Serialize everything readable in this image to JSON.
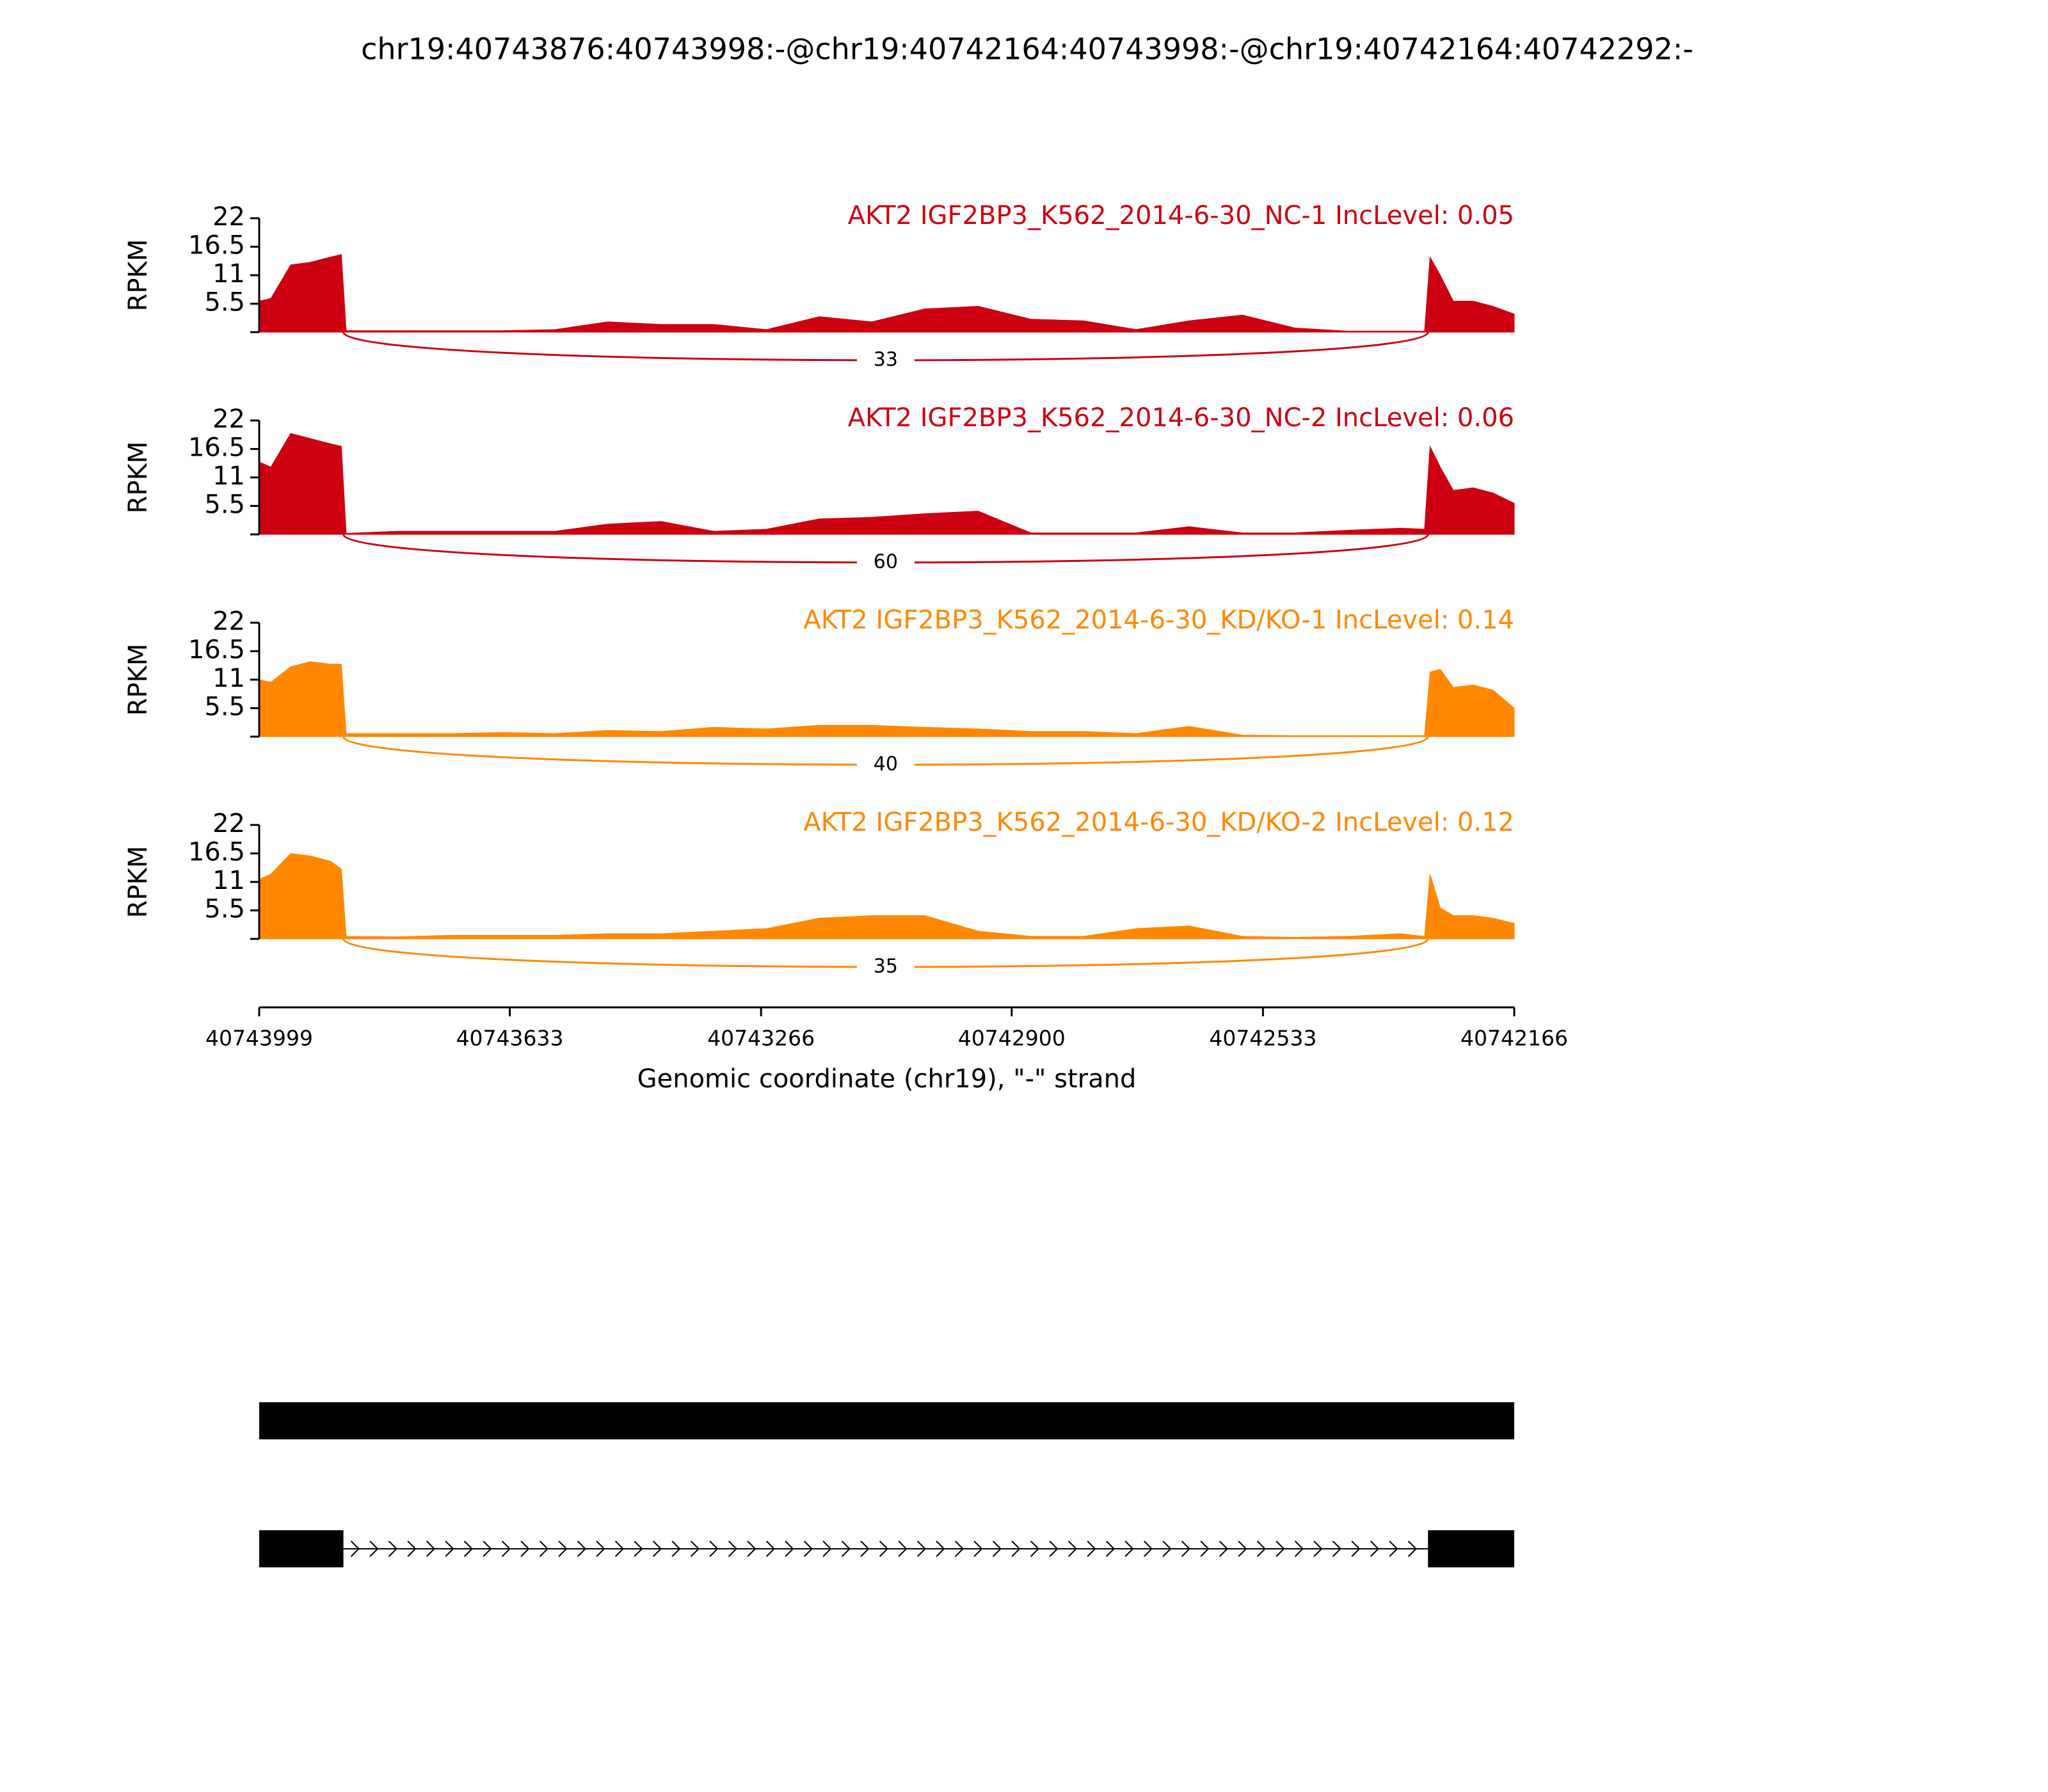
{
  "title": "chr19:40743876:40743998:-@chr19:40742164:40743998:-@chr19:40742164:40742292:-",
  "chart_data": [
    {
      "type": "area",
      "title": "AKT2 IGF2BP3_K562_2014-6-30_NC-1 IncLevel: 0.05",
      "color": "#cc0011",
      "ylabel": "RPKM",
      "ylim": [
        0,
        22
      ],
      "yticks": [
        5.5,
        11,
        16.5,
        22
      ],
      "xlim": [
        40743999,
        40742166
      ],
      "x": [
        40743999,
        40743982,
        40743953,
        40743924,
        40743895,
        40743879,
        40743872,
        40743798,
        40743721,
        40743644,
        40743567,
        40743490,
        40743412,
        40743335,
        40743258,
        40743181,
        40743104,
        40743027,
        40742949,
        40742872,
        40742795,
        40742718,
        40742641,
        40742563,
        40742486,
        40742409,
        40742332,
        40742297,
        40742289,
        40742274,
        40742255,
        40742226,
        40742197,
        40742166
      ],
      "values": [
        6,
        6.5,
        13,
        13.5,
        14.5,
        15,
        0.3,
        0.3,
        0.3,
        0.3,
        0.5,
        2,
        1.5,
        1.5,
        0.5,
        3,
        2,
        4.5,
        5,
        2.5,
        2.2,
        0.5,
        2.2,
        3.3,
        0.8,
        0.2,
        0.2,
        0.2,
        14.5,
        11,
        6,
        6,
        5,
        3.5
      ],
      "junctions": [
        {
          "start": 40743876,
          "end": 40742292,
          "count": 33
        }
      ]
    },
    {
      "type": "area",
      "title": "AKT2 IGF2BP3_K562_2014-6-30_NC-2 IncLevel: 0.06",
      "color": "#cc0011",
      "ylabel": "RPKM",
      "ylim": [
        0,
        22
      ],
      "yticks": [
        5.5,
        11,
        16.5,
        22
      ],
      "xlim": [
        40743999,
        40742166
      ],
      "x": [
        40743999,
        40743982,
        40743953,
        40743924,
        40743895,
        40743879,
        40743872,
        40743798,
        40743721,
        40743644,
        40743567,
        40743490,
        40743412,
        40743335,
        40743258,
        40743181,
        40743104,
        40743027,
        40742949,
        40742872,
        40742795,
        40742718,
        40742641,
        40742563,
        40742486,
        40742409,
        40742332,
        40742297,
        40742289,
        40742274,
        40742255,
        40742226,
        40742197,
        40742166
      ],
      "values": [
        14,
        13,
        19.5,
        18.5,
        17.5,
        17,
        0.2,
        0.6,
        0.6,
        0.6,
        0.6,
        2,
        2.5,
        0.6,
        1,
        3,
        3.3,
        4,
        4.5,
        0.3,
        0.3,
        0.3,
        1.5,
        0.3,
        0.3,
        0.8,
        1.2,
        1,
        17,
        13,
        8.5,
        9,
        8,
        6
      ],
      "junctions": [
        {
          "start": 40743876,
          "end": 40742292,
          "count": 60
        }
      ]
    },
    {
      "type": "area",
      "title": "AKT2 IGF2BP3_K562_2014-6-30_KD/KO-1 IncLevel: 0.14",
      "color": "#ff8800",
      "ylabel": "RPKM",
      "ylim": [
        0,
        22
      ],
      "yticks": [
        5.5,
        11,
        16.5,
        22
      ],
      "xlim": [
        40743999,
        40742166
      ],
      "x": [
        40743999,
        40743982,
        40743953,
        40743924,
        40743895,
        40743879,
        40743872,
        40743798,
        40743721,
        40743644,
        40743567,
        40743490,
        40743412,
        40743335,
        40743258,
        40743181,
        40743104,
        40743027,
        40742949,
        40742872,
        40742795,
        40742718,
        40742641,
        40742563,
        40742486,
        40742409,
        40742332,
        40742297,
        40742289,
        40742274,
        40742255,
        40742226,
        40742197,
        40742166
      ],
      "values": [
        11,
        10.5,
        13.5,
        14.5,
        14,
        14,
        0.6,
        0.6,
        0.6,
        0.8,
        0.6,
        1.2,
        1,
        1.8,
        1.5,
        2.2,
        2.2,
        1.8,
        1.5,
        1,
        1,
        0.6,
        2,
        0.3,
        0.2,
        0.2,
        0.2,
        0.2,
        12.5,
        13,
        9.5,
        10,
        9,
        5.5
      ],
      "junctions": [
        {
          "start": 40743876,
          "end": 40742292,
          "count": 40
        }
      ]
    },
    {
      "type": "area",
      "title": "AKT2 IGF2BP3_K562_2014-6-30_KD/KO-2 IncLevel: 0.12",
      "color": "#ff8800",
      "ylabel": "RPKM",
      "ylim": [
        0,
        22
      ],
      "yticks": [
        5.5,
        11,
        16.5,
        22
      ],
      "xlim": [
        40743999,
        40742166
      ],
      "x": [
        40743999,
        40743982,
        40743953,
        40743924,
        40743895,
        40743879,
        40743872,
        40743798,
        40743721,
        40743644,
        40743567,
        40743490,
        40743412,
        40743335,
        40743258,
        40743181,
        40743104,
        40743027,
        40742949,
        40742872,
        40742795,
        40742718,
        40742641,
        40742563,
        40742486,
        40742409,
        40742332,
        40742297,
        40742289,
        40742274,
        40742255,
        40742226,
        40742197,
        40742166
      ],
      "values": [
        11.5,
        12.5,
        16.5,
        16,
        15,
        13.5,
        0.5,
        0.4,
        0.7,
        0.7,
        0.7,
        1,
        1,
        1.5,
        2,
        4,
        4.5,
        4.5,
        1.5,
        0.5,
        0.5,
        2,
        2.5,
        0.5,
        0.3,
        0.5,
        1,
        0.5,
        12.5,
        6,
        4.5,
        4.5,
        4,
        3
      ],
      "junctions": [
        {
          "start": 40743876,
          "end": 40742292,
          "count": 35
        }
      ],
      "xticks": [
        40743999,
        40743633,
        40743266,
        40742900,
        40742533,
        40742166
      ],
      "xlabel": "Genomic coordinate (chr19), \"-\" strand"
    },
    {
      "type": "gene-model",
      "xlim": [
        40743999,
        40742166
      ],
      "transcripts": [
        {
          "exons": [
            [
              40743999,
              40742166
            ]
          ]
        },
        {
          "exons": [
            [
              40743999,
              40743876
            ],
            [
              40742292,
              40742166
            ]
          ]
        }
      ]
    }
  ]
}
